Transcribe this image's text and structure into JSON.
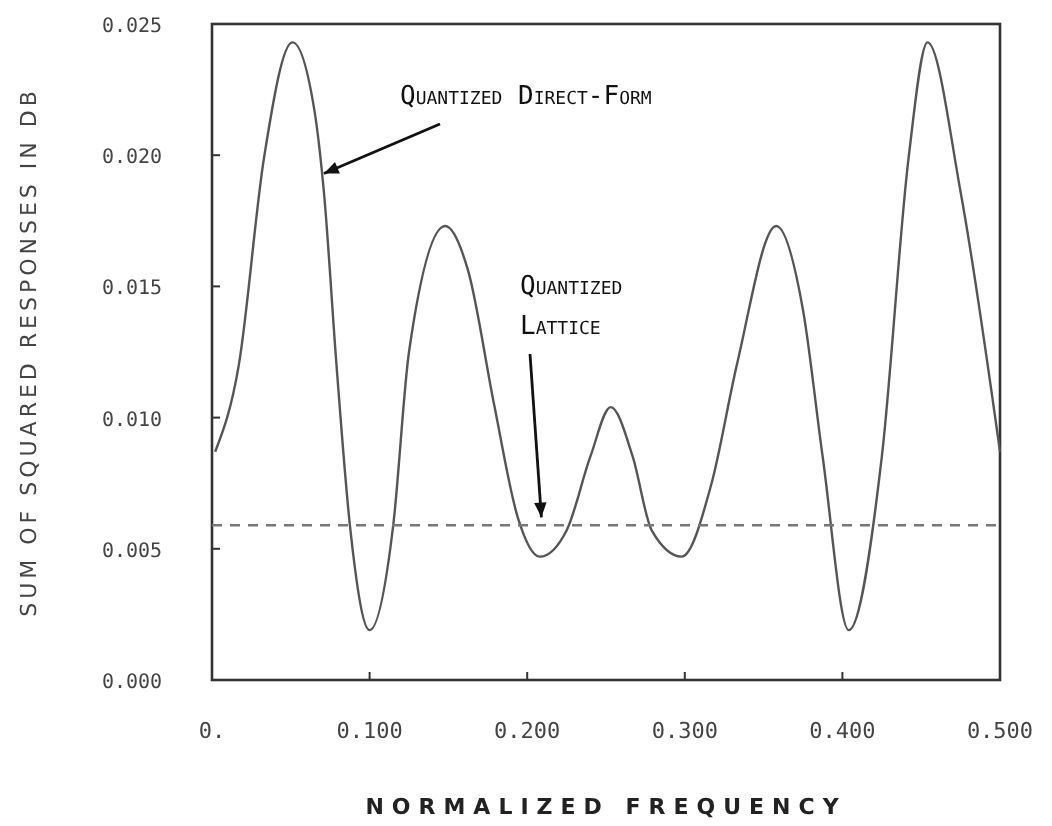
{
  "chart_data": {
    "type": "line",
    "xlabel": "NORMALIZED FREQUENCY",
    "ylabel": "SUM OF SQUARED RESPONSES IN DB",
    "xlim": [
      0,
      0.5
    ],
    "ylim": [
      0,
      0.025
    ],
    "xticks": [
      {
        "value": 0,
        "label": "0."
      },
      {
        "value": 0.1,
        "label": "0.100"
      },
      {
        "value": 0.2,
        "label": "0.200"
      },
      {
        "value": 0.3,
        "label": "0.300"
      },
      {
        "value": 0.4,
        "label": "0.400"
      },
      {
        "value": 0.5,
        "label": "0.500"
      }
    ],
    "yticks": [
      {
        "value": 0,
        "label": "0.000"
      },
      {
        "value": 0.005,
        "label": "0.005"
      },
      {
        "value": 0.01,
        "label": "0.010"
      },
      {
        "value": 0.015,
        "label": "0.015"
      },
      {
        "value": 0.02,
        "label": "0.020"
      },
      {
        "value": 0.025,
        "label": "0.025"
      }
    ],
    "grid": false,
    "series": [
      {
        "color": "#555555",
        "line_style": "solid",
        "x": [
          0.002,
          0.017,
          0.033,
          0.051,
          0.065,
          0.071,
          0.079,
          0.0875,
          0.1,
          0.115,
          0.125,
          0.148,
          0.1625,
          0.179,
          0.194,
          0.208,
          0.225,
          0.24,
          0.253,
          0.267,
          0.279,
          0.298,
          0.317,
          0.333,
          0.358,
          0.375,
          0.3875,
          0.404,
          0.425,
          0.442,
          0.454,
          0.475,
          0.5
        ],
        "values": [
          0.0087,
          0.012,
          0.0199,
          0.0243,
          0.0217,
          0.0186,
          0.012,
          0.0059,
          0.0019,
          0.0059,
          0.0125,
          0.0173,
          0.0156,
          0.0105,
          0.0062,
          0.0047,
          0.0057,
          0.0085,
          0.0104,
          0.0085,
          0.0057,
          0.0047,
          0.0075,
          0.012,
          0.0173,
          0.0141,
          0.0085,
          0.0019,
          0.0085,
          0.0199,
          0.0243,
          0.0186,
          0.0087
        ]
      },
      {
        "color": "#777777",
        "line_style": "dashed",
        "x": [
          0,
          0.5
        ],
        "values": [
          0.0059,
          0.0059
        ]
      }
    ],
    "annotations": [
      {
        "text": "Quantized Direct-Form",
        "x": 0.071,
        "y": 0.0193
      },
      {
        "text": "Quantized Lattice",
        "x": 0.209,
        "y": 0.0062
      }
    ]
  }
}
